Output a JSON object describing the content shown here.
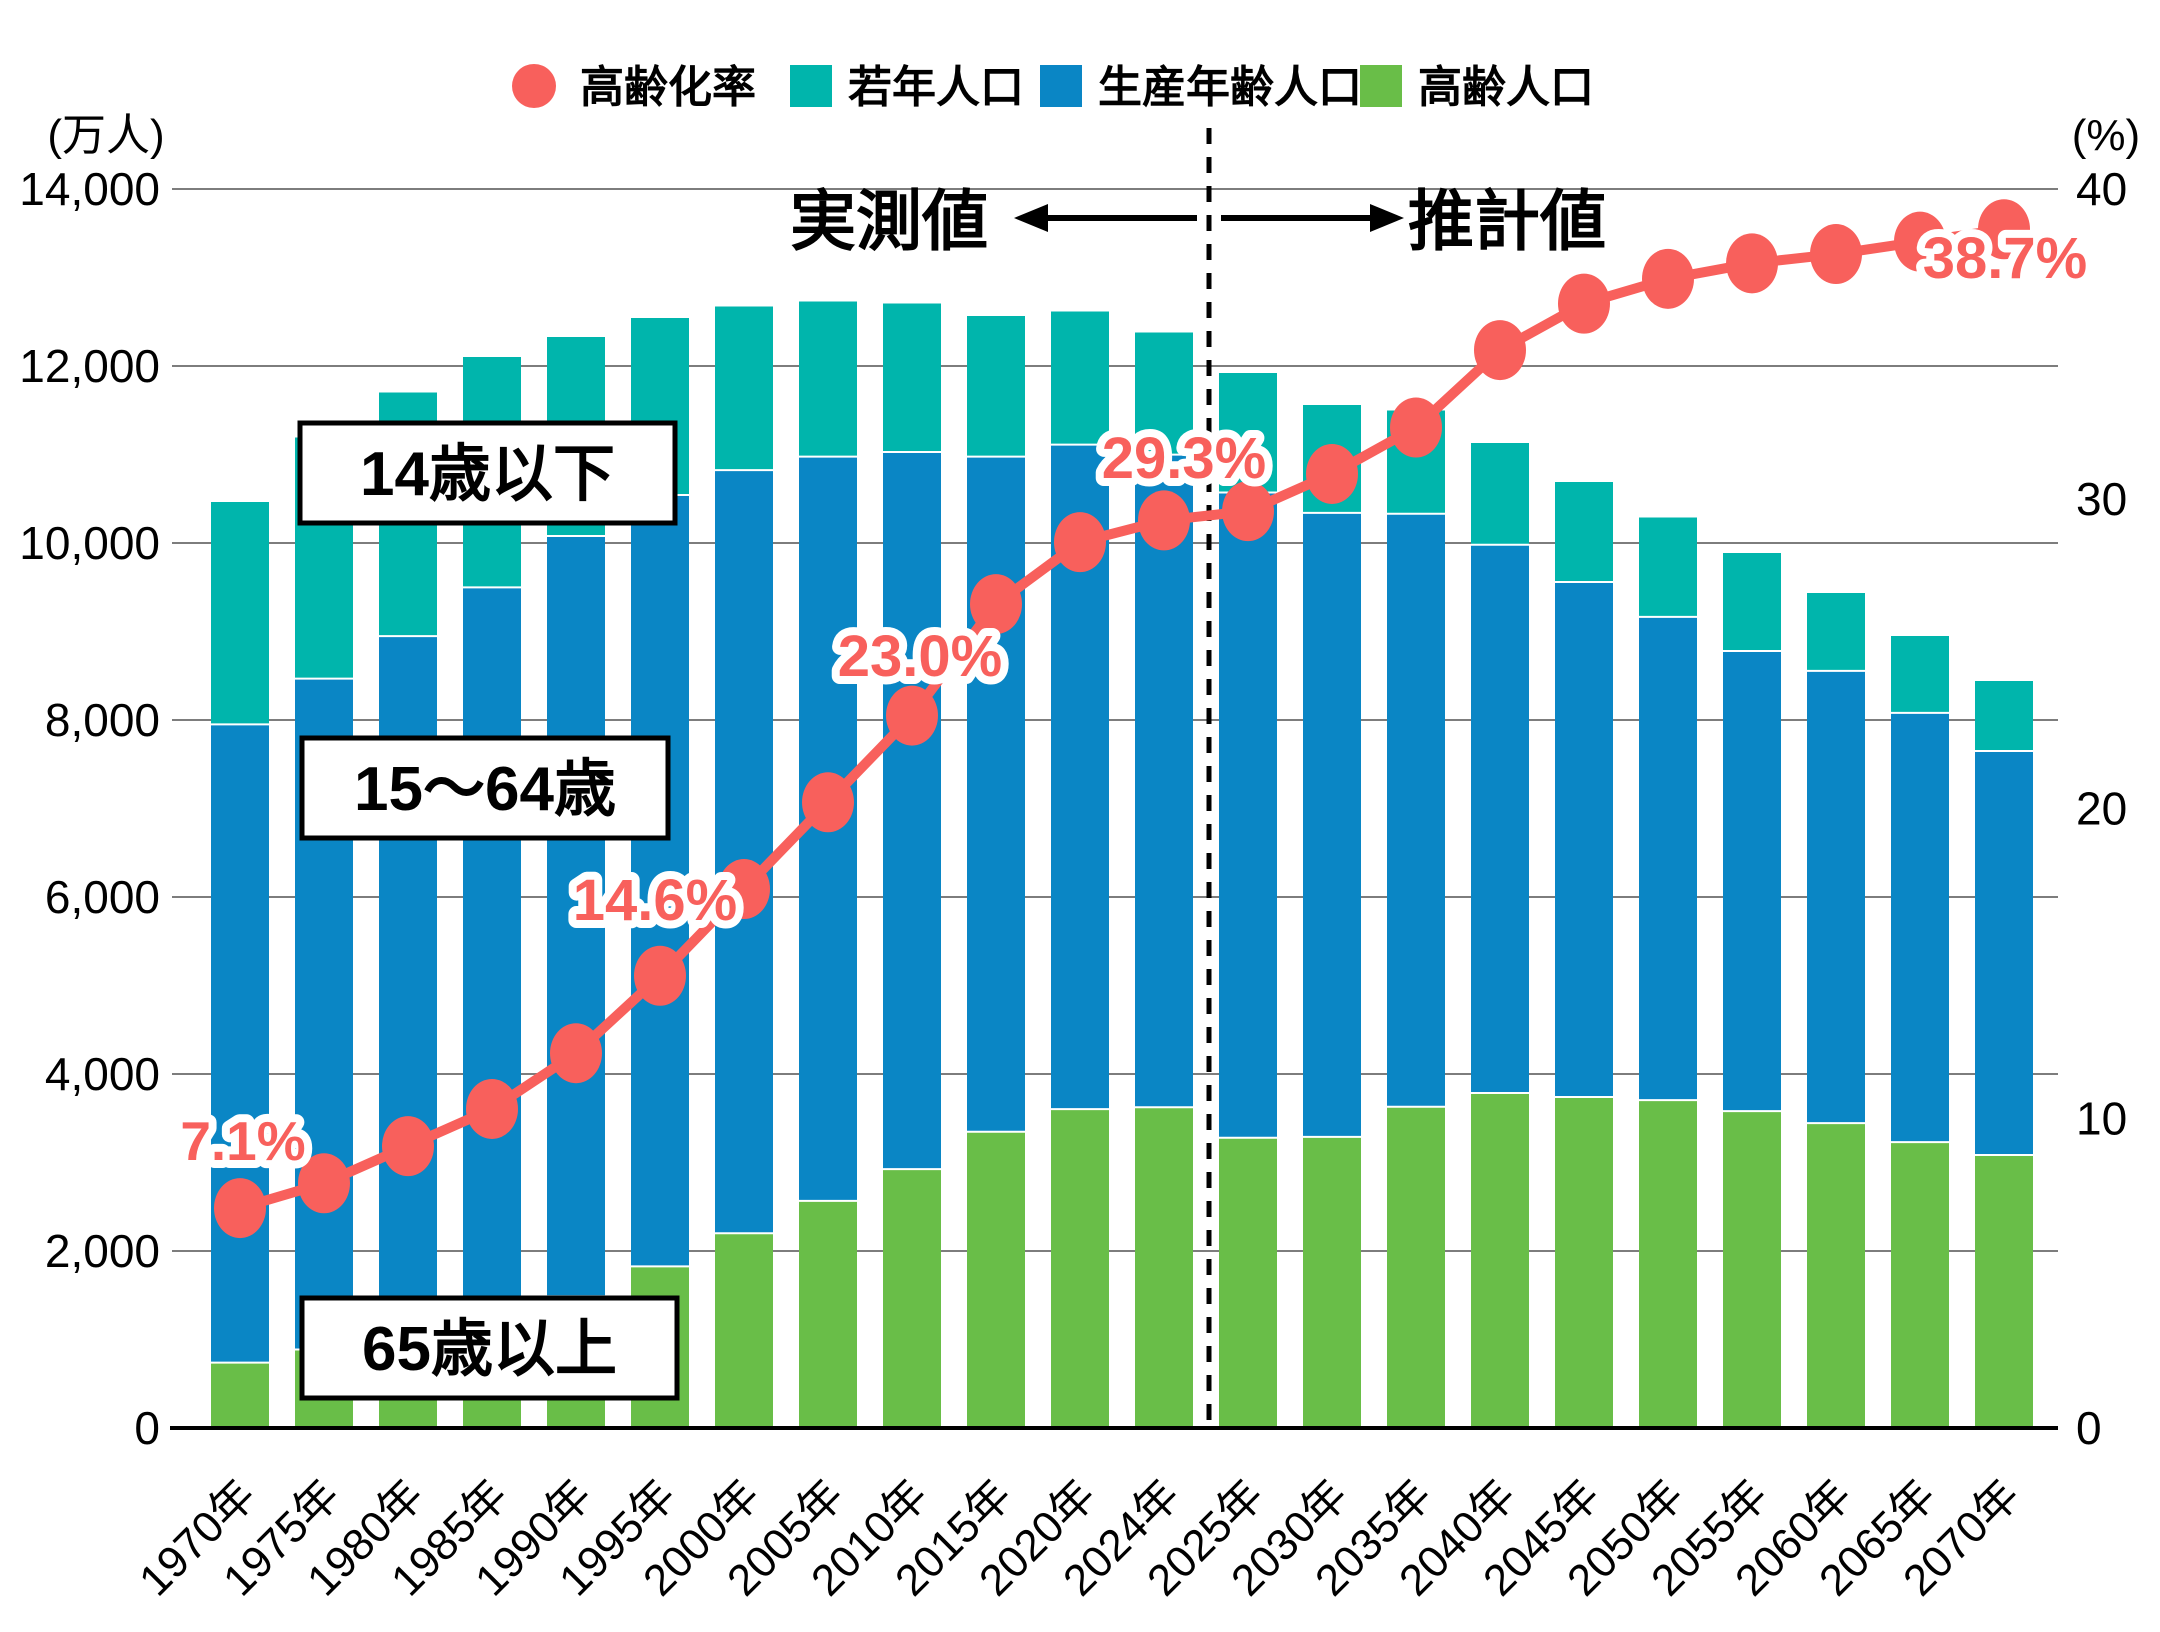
{
  "page": {
    "background": "#ffffff"
  },
  "legend": {
    "items": [
      {
        "label": "高齢化率",
        "marker": "circle",
        "color": "#f8605c"
      },
      {
        "label": "若年人口",
        "marker": "square",
        "color": "#00b5ac"
      },
      {
        "label": "生産年齢人口",
        "marker": "square",
        "color": "#0a86c5"
      },
      {
        "label": "高齢人口",
        "marker": "square",
        "color": "#69be48"
      }
    ]
  },
  "axes": {
    "left_unit": "(万人)",
    "right_unit": "(%)",
    "left_ticks": [
      "0",
      "2,000",
      "4,000",
      "6,000",
      "8,000",
      "10,000",
      "12,000",
      "14,000"
    ],
    "right_ticks": [
      "0",
      "10",
      "20",
      "30",
      "40"
    ]
  },
  "annotations": {
    "observed_label": "実測値",
    "projected_label": "推計値",
    "group_boxes": [
      {
        "id": "young",
        "text": "14歳以下"
      },
      {
        "id": "working",
        "text": "15〜64歳"
      },
      {
        "id": "old",
        "text": "65歳以上"
      }
    ],
    "callouts": [
      {
        "text": "7.1%",
        "year": "1970年"
      },
      {
        "text": "14.6%",
        "year": "1995年"
      },
      {
        "text": "23.0%",
        "year": "2010年"
      },
      {
        "text": "29.3%",
        "year": "2024年"
      },
      {
        "text": "38.7%",
        "year": "2070年"
      }
    ]
  },
  "chart_data": {
    "type": "combo-stacked-bar-line",
    "title": "",
    "categories": [
      "1970年",
      "1975年",
      "1980年",
      "1985年",
      "1990年",
      "1995年",
      "2000年",
      "2005年",
      "2010年",
      "2015年",
      "2020年",
      "2024年",
      "2025年",
      "2030年",
      "2035年",
      "2040年",
      "2045年",
      "2050年",
      "2055年",
      "2060年",
      "2065年",
      "2070年"
    ],
    "projection_start_index": 12,
    "unit_bars": "万人",
    "unit_line": "%",
    "ylim_left": [
      0,
      14000
    ],
    "ylim_right": [
      0,
      40
    ],
    "grid": true,
    "legend_position": "top",
    "series": [
      {
        "name": "高齢人口",
        "color": "#69be48",
        "values": [
          739,
          887,
          1065,
          1247,
          1489,
          1826,
          2201,
          2567,
          2925,
          3347,
          3603,
          3625,
          3280,
          3290,
          3630,
          3785,
          3740,
          3705,
          3580,
          3445,
          3230,
          3085
        ]
      },
      {
        "name": "生産年齢人口",
        "color": "#0a86c5",
        "values": [
          7212,
          7581,
          7883,
          8251,
          8590,
          8716,
          8622,
          8409,
          8103,
          7629,
          7509,
          7373,
          7290,
          7050,
          6700,
          6195,
          5820,
          5460,
          5200,
          5110,
          4850,
          4565
        ]
      },
      {
        "name": "若年人口",
        "color": "#00b5ac",
        "values": [
          2515,
          2722,
          2751,
          2603,
          2249,
          2001,
          1847,
          1752,
          1680,
          1589,
          1503,
          1383,
          1350,
          1220,
          1170,
          1150,
          1130,
          1125,
          1105,
          880,
          870,
          790
        ]
      }
    ],
    "line_series": {
      "name": "高齢化率",
      "color": "#f8605c",
      "values": [
        7.1,
        7.9,
        9.1,
        10.3,
        12.1,
        14.6,
        17.4,
        20.2,
        23.0,
        26.6,
        28.6,
        29.3,
        29.6,
        30.8,
        32.3,
        34.8,
        36.3,
        37.1,
        37.6,
        37.9,
        38.3,
        38.7
      ]
    }
  }
}
